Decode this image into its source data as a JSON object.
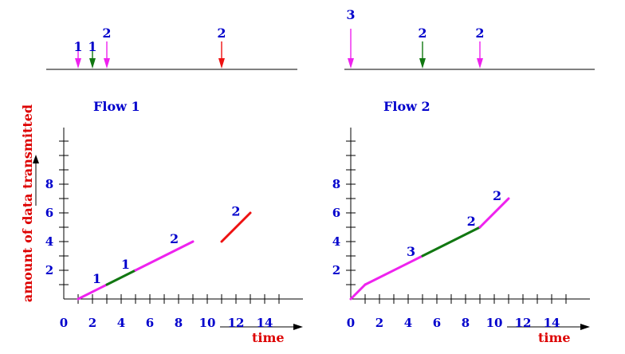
{
  "colors": {
    "magenta": "#ee22ee",
    "green": "#117711",
    "red": "#ee1111",
    "blue_text": "#0000cc",
    "red_text": "#dd0000",
    "black": "#000000"
  },
  "ylabel": "amount of data transmitted",
  "xlabel": "time",
  "x_tick_labels": [
    "0",
    "2",
    "4",
    "6",
    "8",
    "10",
    "12",
    "14"
  ],
  "y_tick_labels": [
    "2",
    "4",
    "6",
    "8"
  ],
  "panels": [
    {
      "title": "Flow 1",
      "arrivals": [
        {
          "t": 1,
          "label": "1",
          "color": "magenta"
        },
        {
          "t": 2,
          "label": "1",
          "color": "green"
        },
        {
          "t": 3,
          "label": "2",
          "color": "magenta"
        },
        {
          "t": 11,
          "label": "2",
          "color": "red"
        }
      ],
      "segments": [
        {
          "x1": 1,
          "y1": 0,
          "x2": 3,
          "y2": 1,
          "color": "magenta",
          "label": "1",
          "lx": 2.3,
          "ly": 1.1
        },
        {
          "x1": 3,
          "y1": 1,
          "x2": 5,
          "y2": 2,
          "color": "green",
          "label": "1",
          "lx": 4.3,
          "ly": 2.1
        },
        {
          "x1": 5,
          "y1": 2,
          "x2": 9,
          "y2": 4,
          "color": "magenta",
          "label": "2",
          "lx": 7.7,
          "ly": 3.9
        },
        {
          "x1": 11,
          "y1": 4,
          "x2": 13,
          "y2": 6,
          "color": "red",
          "label": "2",
          "lx": 12.0,
          "ly": 5.8
        }
      ]
    },
    {
      "title": "Flow 2",
      "arrivals": [
        {
          "t": 0,
          "label": "3",
          "color": "magenta"
        },
        {
          "t": 5,
          "label": "2",
          "color": "green"
        },
        {
          "t": 9,
          "label": "2",
          "color": "magenta"
        }
      ],
      "segments": [
        {
          "x1": 0,
          "y1": 0,
          "x2": 1,
          "y2": 1,
          "color": "magenta",
          "label": "",
          "lx": 0,
          "ly": 0
        },
        {
          "x1": 1,
          "y1": 1,
          "x2": 5,
          "y2": 3,
          "color": "magenta",
          "label": "3",
          "lx": 4.2,
          "ly": 3.0
        },
        {
          "x1": 5,
          "y1": 3,
          "x2": 9,
          "y2": 5,
          "color": "green",
          "label": "2",
          "lx": 8.4,
          "ly": 5.1
        },
        {
          "x1": 9,
          "y1": 5,
          "x2": 11,
          "y2": 7,
          "color": "magenta",
          "label": "2",
          "lx": 10.2,
          "ly": 6.9
        }
      ]
    }
  ]
}
